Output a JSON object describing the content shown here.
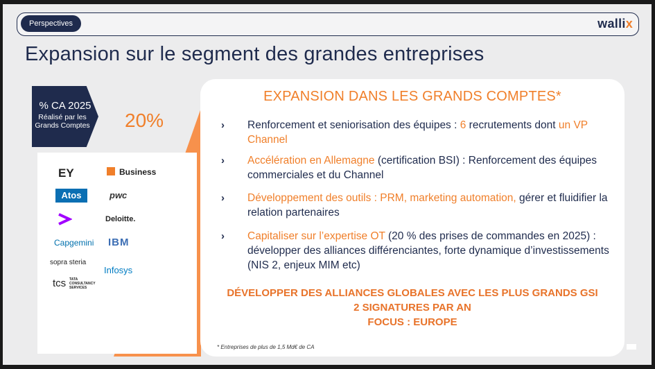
{
  "header": {
    "tag": "Perspectives",
    "logo_main": "walli",
    "logo_accent": "x"
  },
  "title": "Expansion sur le segment des grandes entreprises",
  "badge": {
    "line1": "% CA 2025",
    "line2": "Réalisé par les Grands Comptes",
    "value": "20%"
  },
  "logos": [
    "EY",
    "Business",
    "Atos",
    "pwc",
    "accenture-icon",
    "Deloitte.",
    "Capgemini",
    "IBM",
    "sopra steria",
    "Infosys",
    "tcs",
    "TATA CONSULTANCY SERVICES"
  ],
  "card": {
    "title": "EXPANSION DANS LES GRANDS COMPTES*",
    "b1": {
      "a": "Renforcement et seniorisation des équipes : ",
      "b": "6",
      "c": " recrutements dont ",
      "d": "un VP Channel"
    },
    "b2": {
      "a": "Accélération en Allemagne",
      "b": " (certification BSI) : Renforcement des équipes commerciales et du Channel"
    },
    "b3": {
      "a": "Développement des outils : PRM, marketing automation,",
      "b": " gérer et fluidifier la relation partenaires"
    },
    "b4": {
      "a": "Capitaliser sur l’expertise OT",
      "b": " (20 % des prises de commandes en 2025) : développer des alliances différenciantes, forte dynamique d’investissements (NIS 2, enjeux MIM etc)"
    },
    "cta1": "DÉVELOPPER DES ALLIANCES GLOBALES AVEC LES PLUS GRANDS GSI",
    "cta2": "2 SIGNATURES PAR AN",
    "cta3": "FOCUS : EUROPE",
    "footnote": "* Entreprises de plus de 1,5 Md€ de CA"
  },
  "colors": {
    "navy": "#1f2b4d",
    "orange": "#f07f2a"
  }
}
